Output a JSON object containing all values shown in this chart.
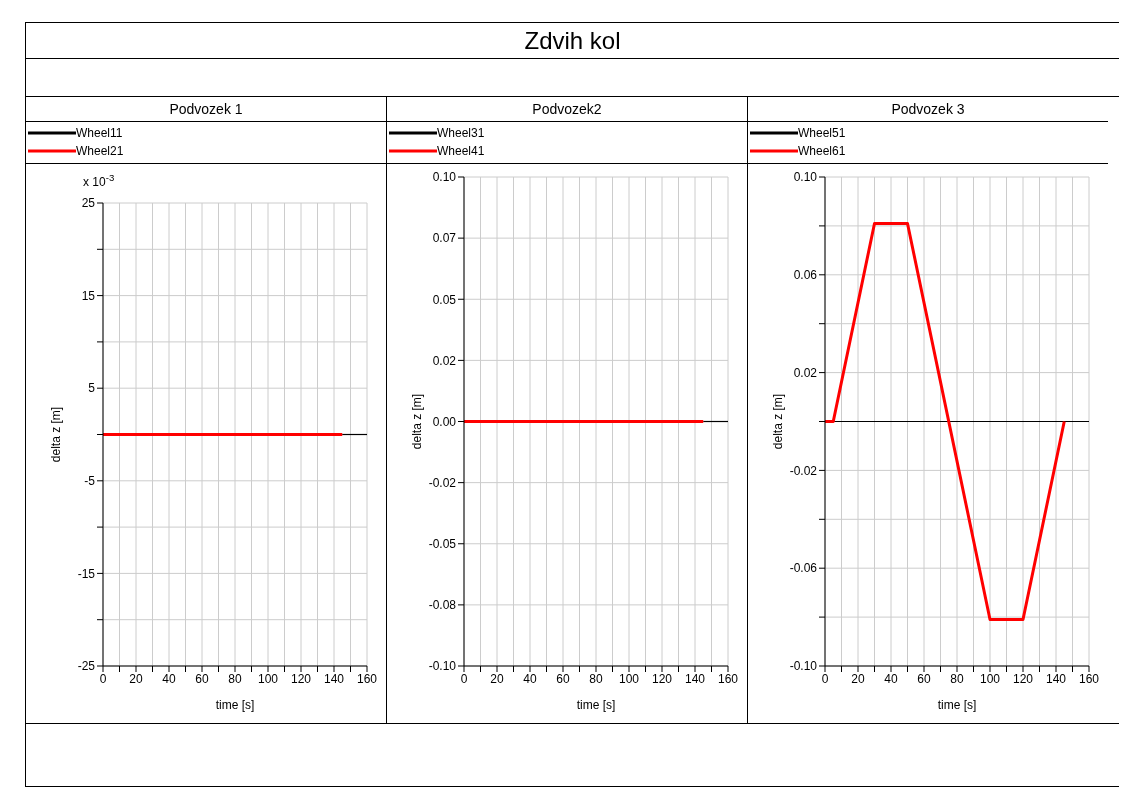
{
  "chart_data": [
    {
      "type": "line",
      "title": "Podvozek 1",
      "xlabel": "time [s]",
      "ylabel": "delta z  [m]",
      "annotations": [
        "Zdvih kol",
        "x 10$^{-3}$"
      ],
      "xlim": [
        0,
        160
      ],
      "xticks": [
        0,
        {
          "value": 10,
          "label": null
        },
        20,
        {
          "value": 30,
          "label": null
        },
        40,
        {
          "value": 50,
          "label": null
        },
        60,
        {
          "value": 70,
          "label": null
        },
        80,
        {
          "value": 90,
          "label": null
        },
        100,
        {
          "value": 110,
          "label": null
        },
        120,
        {
          "value": 130,
          "label": null
        },
        140,
        {
          "value": 150,
          "label": null
        },
        160
      ],
      "ylim": [
        -25,
        25
      ],
      "yticks": [
        -25,
        {
          "value": -20,
          "label": null
        },
        -15,
        {
          "value": -10,
          "label": null
        },
        -5,
        {
          "value": 0,
          "label": null
        },
        5,
        {
          "value": 10,
          "label": null
        },
        15,
        {
          "value": 20,
          "label": null
        },
        25
      ],
      "grid": true,
      "legend": "top left",
      "series": [
        {
          "name": "Wheel11",
          "color": "#000000",
          "x": [
            145,
            160
          ],
          "values": [
            0,
            0
          ]
        },
        {
          "name": "Wheel21",
          "color": "#ff0000",
          "x": [
            0,
            145
          ],
          "values": [
            0,
            0
          ]
        }
      ]
    },
    {
      "type": "line",
      "title": "Podvozek2",
      "xlabel": "time [s]",
      "ylabel": "delta z  [m]",
      "xlim": [
        0,
        160
      ],
      "xticks": [
        0,
        {
          "value": 10,
          "label": null
        },
        20,
        {
          "value": 30,
          "label": null
        },
        40,
        {
          "value": 50,
          "label": null
        },
        60,
        {
          "value": 70,
          "label": null
        },
        80,
        {
          "value": 90,
          "label": null
        },
        100,
        {
          "value": 110,
          "label": null
        },
        120,
        {
          "value": 130,
          "label": null
        },
        140,
        {
          "value": 150,
          "label": null
        },
        160
      ],
      "ylim": [
        -0.1,
        0.1
      ],
      "yticks": [
        {
          "value": -0.1,
          "label": "-0.10"
        },
        {
          "value": -0.075,
          "label": "-0.08"
        },
        {
          "value": -0.05,
          "label": "-0.05"
        },
        {
          "value": -0.025,
          "label": "-0.02"
        },
        {
          "value": 0,
          "label": "0.00"
        },
        {
          "value": 0.025,
          "label": "0.02"
        },
        {
          "value": 0.05,
          "label": "0.05"
        },
        {
          "value": 0.075,
          "label": "0.07"
        },
        {
          "value": 0.1,
          "label": "0.10"
        }
      ],
      "grid": true,
      "legend": "top left",
      "series": [
        {
          "name": "Wheel31",
          "color": "#000000",
          "x": [
            145,
            160
          ],
          "values": [
            0,
            0
          ]
        },
        {
          "name": "Wheel41",
          "color": "#ff0000",
          "x": [
            0,
            145
          ],
          "values": [
            0,
            0
          ]
        }
      ]
    },
    {
      "type": "line",
      "title": "Podvozek 3",
      "xlabel": "time [s]",
      "ylabel": "delta z  [m]",
      "xlim": [
        0,
        160
      ],
      "xticks": [
        0,
        {
          "value": 10,
          "label": null
        },
        20,
        {
          "value": 30,
          "label": null
        },
        40,
        {
          "value": 50,
          "label": null
        },
        60,
        {
          "value": 70,
          "label": null
        },
        80,
        {
          "value": 90,
          "label": null
        },
        100,
        {
          "value": 110,
          "label": null
        },
        120,
        {
          "value": 130,
          "label": null
        },
        140,
        {
          "value": 150,
          "label": null
        },
        160
      ],
      "ylim": [
        -0.1,
        0.1
      ],
      "yticks": [
        {
          "value": -0.1,
          "label": "-0.10"
        },
        {
          "value": -0.08,
          "label": null
        },
        {
          "value": -0.06,
          "label": "-0.06"
        },
        {
          "value": -0.04,
          "label": null
        },
        {
          "value": -0.02,
          "label": "-0.02"
        },
        {
          "value": 0,
          "label": null
        },
        {
          "value": 0.02,
          "label": "0.02"
        },
        {
          "value": 0.04,
          "label": null
        },
        {
          "value": 0.06,
          "label": "0.06"
        },
        {
          "value": 0.08,
          "label": null
        },
        {
          "value": 0.1,
          "label": "0.10"
        }
      ],
      "grid": true,
      "legend": "top left",
      "series": [
        {
          "name": "Wheel51",
          "color": "#000000",
          "x": [
            0,
            160
          ],
          "values": [
            0,
            0
          ]
        },
        {
          "name": "Wheel61",
          "color": "#ff0000",
          "x": [
            0,
            5,
            30,
            50,
            100,
            120,
            145
          ],
          "values": [
            0,
            0,
            0.081,
            0.081,
            -0.081,
            -0.081,
            0
          ]
        }
      ]
    }
  ]
}
